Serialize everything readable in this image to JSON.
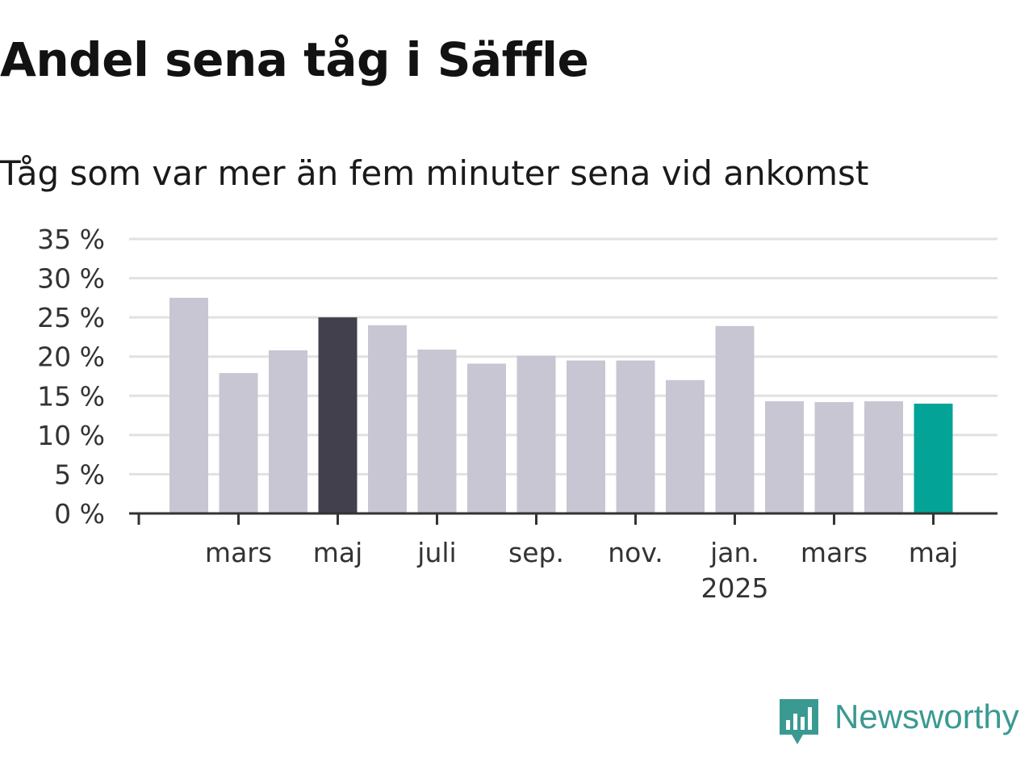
{
  "title": "Andel sena tåg i Säffle",
  "subtitle": "Tåg som var mer än fem minuter sena vid ankomst",
  "brand": {
    "name": "Newsworthy",
    "color": "#3a9a92"
  },
  "colors": {
    "bar_default": "#c8c6d2",
    "bar_highlight": "#42404d",
    "bar_latest": "#03a497",
    "grid": "#e1e1e1",
    "axis": "#333333"
  },
  "chart_data": {
    "type": "bar",
    "categories": [
      "2024-02",
      "2024-03",
      "2024-04",
      "2024-05",
      "2024-06",
      "2024-07",
      "2024-08",
      "2024-09",
      "2024-10",
      "2024-11",
      "2024-12",
      "2025-01",
      "2025-02",
      "2025-03",
      "2025-04",
      "2025-05"
    ],
    "values": [
      27.5,
      17.9,
      20.8,
      25.0,
      24.0,
      20.9,
      19.1,
      20.1,
      19.5,
      19.5,
      17.0,
      23.9,
      14.3,
      14.2,
      14.3,
      14.0
    ],
    "highlight": {
      "2024-05": "bar_highlight",
      "2025-05": "bar_latest"
    },
    "ylim": [
      0,
      35
    ],
    "yticks": [
      0,
      5,
      10,
      15,
      20,
      25,
      30,
      35
    ],
    "ytick_labels": [
      "0 %",
      "5 %",
      "10 %",
      "15 %",
      "20 %",
      "25 %",
      "30 %",
      "35 %"
    ],
    "xticks": [
      {
        "at": "2024-03",
        "label": "mars"
      },
      {
        "at": "2024-05",
        "label": "maj"
      },
      {
        "at": "2024-07",
        "label": "juli"
      },
      {
        "at": "2024-09",
        "label": "sep."
      },
      {
        "at": "2024-11",
        "label": "nov."
      },
      {
        "at": "2025-01",
        "label": "jan.",
        "sublabel": "2025"
      },
      {
        "at": "2025-03",
        "label": "mars"
      },
      {
        "at": "2025-05",
        "label": "maj"
      }
    ],
    "grid": true,
    "xlabel": "",
    "ylabel": ""
  }
}
